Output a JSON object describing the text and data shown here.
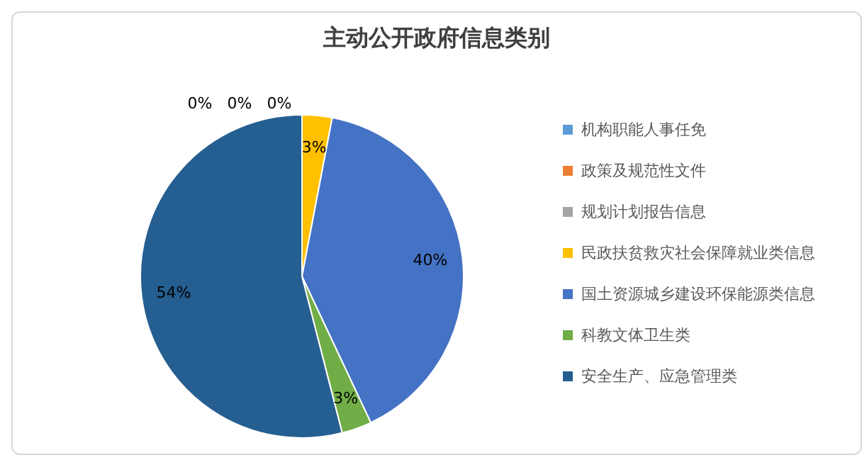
{
  "chart_data": {
    "type": "pie",
    "title": "主动公开政府信息类别",
    "categories": [
      "机构职能人事任免",
      "政策及规范性文件",
      "规划计划报告信息",
      "民政扶贫救灾社会保障就业类信息",
      "国土资源城乡建设环保能源类信息",
      "科教文体卫生类",
      "安全生产、应急管理类"
    ],
    "values": [
      0,
      0,
      0,
      3,
      40,
      3,
      54
    ],
    "colors": [
      "#5b9bd5",
      "#ed7d31",
      "#a5a5a5",
      "#ffc000",
      "#4472c4",
      "#70ad47",
      "#255e91"
    ],
    "value_labels": [
      "0%",
      "0%",
      "0%",
      "3%",
      "40%",
      "3%",
      "54%"
    ],
    "legend": "right"
  }
}
